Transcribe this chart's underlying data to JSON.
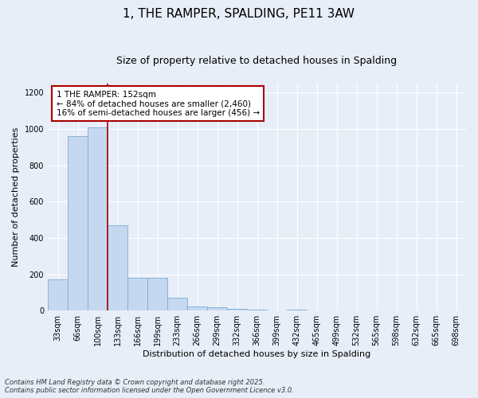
{
  "title": "1, THE RAMPER, SPALDING, PE11 3AW",
  "subtitle": "Size of property relative to detached houses in Spalding",
  "xlabel": "Distribution of detached houses by size in Spalding",
  "ylabel": "Number of detached properties",
  "footnote1": "Contains HM Land Registry data © Crown copyright and database right 2025.",
  "footnote2": "Contains public sector information licensed under the Open Government Licence v3.0.",
  "annotation_line1": "1 THE RAMPER: 152sqm",
  "annotation_line2": "← 84% of detached houses are smaller (2,460)",
  "annotation_line3": "16% of semi-detached houses are larger (456) →",
  "bar_color": "#c5d8f0",
  "bar_edge_color": "#7aadd4",
  "vline_color": "#aa0000",
  "background_color": "#e8eef8",
  "annotation_bg": "#ffffff",
  "annotation_edge": "#aa0000",
  "grid_color": "#d0d8e8",
  "categories": [
    "33sqm",
    "66sqm",
    "100sqm",
    "133sqm",
    "166sqm",
    "199sqm",
    "233sqm",
    "266sqm",
    "299sqm",
    "332sqm",
    "366sqm",
    "399sqm",
    "432sqm",
    "465sqm",
    "499sqm",
    "532sqm",
    "565sqm",
    "598sqm",
    "632sqm",
    "665sqm",
    "698sqm"
  ],
  "values": [
    170,
    960,
    1010,
    470,
    180,
    180,
    70,
    22,
    18,
    8,
    4,
    0,
    4,
    0,
    0,
    0,
    0,
    0,
    0,
    0,
    0
  ],
  "ylim": [
    0,
    1250
  ],
  "yticks": [
    0,
    200,
    400,
    600,
    800,
    1000,
    1200
  ],
  "vline_x_index": 2.5,
  "title_fontsize": 11,
  "subtitle_fontsize": 9,
  "axis_label_fontsize": 8,
  "tick_fontsize": 7,
  "annotation_fontsize": 7.5,
  "footnote_fontsize": 6
}
